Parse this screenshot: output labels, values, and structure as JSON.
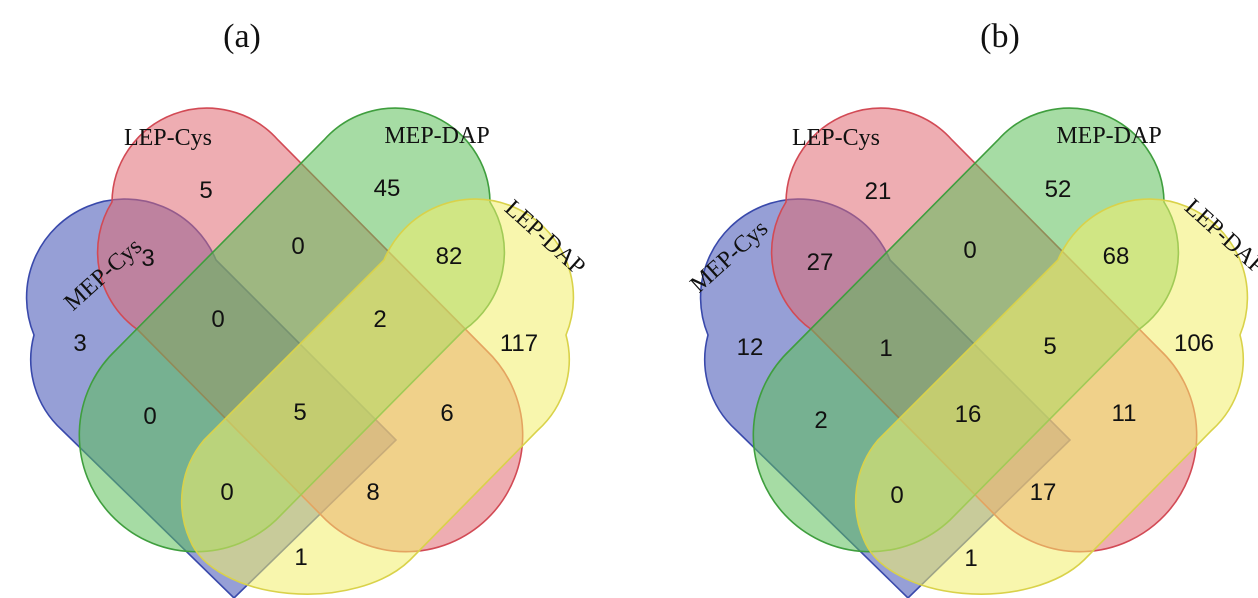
{
  "panels": [
    {
      "letter": "(a)",
      "sets": {
        "mep_cys": {
          "label": "MEP-Cys",
          "fill": "#3f51b5",
          "stroke": "#3949ab"
        },
        "lep_cys": {
          "label": "LEP-Cys",
          "fill": "#e06a72",
          "stroke": "#d24a55"
        },
        "mep_dap": {
          "label": "MEP-DAP",
          "fill": "#5cbf5a",
          "stroke": "#3f9e3e"
        },
        "lep_dap": {
          "label": "LEP-DAP",
          "fill": "#f2ee6a",
          "stroke": "#d9d24a"
        }
      },
      "counts": {
        "mep_cys_only": "3",
        "lep_cys_only": "5",
        "mep_dap_only": "45",
        "lep_dap_only": "117",
        "mep_cys__lep_cys": "3",
        "lep_cys__mep_dap": "0",
        "mep_dap__lep_dap": "82",
        "mep_cys__lep_cys__mep_dap": "0",
        "lep_cys__mep_dap__lep_dap": "2",
        "mep_cys__mep_dap": "0",
        "all_four": "5",
        "lep_cys__lep_dap": "6",
        "mep_cys__mep_dap__lep_dap": "0",
        "mep_cys__lep_cys__lep_dap": "8",
        "mep_cys__lep_dap": "1"
      }
    },
    {
      "letter": "(b)",
      "sets": {
        "mep_cys": {
          "label": "MEP-Cys",
          "fill": "#3f51b5",
          "stroke": "#3949ab"
        },
        "lep_cys": {
          "label": "LEP-Cys",
          "fill": "#e06a72",
          "stroke": "#d24a55"
        },
        "mep_dap": {
          "label": "MEP-DAP",
          "fill": "#5cbf5a",
          "stroke": "#3f9e3e"
        },
        "lep_dap": {
          "label": "LEP-DAP",
          "fill": "#f2ee6a",
          "stroke": "#d9d24a"
        }
      },
      "counts": {
        "mep_cys_only": "12",
        "lep_cys_only": "21",
        "mep_dap_only": "52",
        "lep_dap_only": "106",
        "mep_cys__lep_cys": "27",
        "lep_cys__mep_dap": "0",
        "mep_dap__lep_dap": "68",
        "mep_cys__lep_cys__mep_dap": "1",
        "lep_cys__mep_dap__lep_dap": "5",
        "mep_cys__mep_dap": "2",
        "all_four": "16",
        "lep_cys__lep_dap": "11",
        "mep_cys__mep_dap__lep_dap": "0",
        "mep_cys__lep_cys__lep_dap": "17",
        "mep_cys__lep_dap": "1"
      }
    }
  ]
}
